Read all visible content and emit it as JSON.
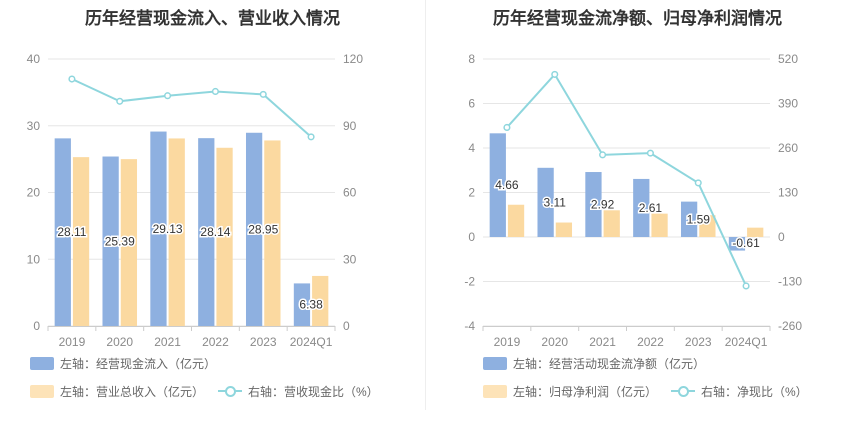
{
  "colors": {
    "bar_primary": "#8eb0e0",
    "bar_secondary": "#fbd9a0",
    "line": "#8ed6dd",
    "grid": "#e6e6e6",
    "axis_text": "#8a8a8a",
    "title": "#333333"
  },
  "chart_data": [
    {
      "type": "bar",
      "title": "历年经营现金流入、营业收入情况",
      "categories": [
        "2019",
        "2020",
        "2021",
        "2022",
        "2023",
        "2024Q1"
      ],
      "left_axis": {
        "ylim": [
          0,
          40
        ],
        "ticks": [
          "0",
          "10",
          "20",
          "30",
          "40"
        ]
      },
      "right_axis": {
        "ylim": [
          0,
          120
        ],
        "ticks": [
          "0",
          "30",
          "60",
          "90",
          "120"
        ]
      },
      "series": [
        {
          "name": "左轴：经营现金流入（亿元）",
          "kind": "bar",
          "axis": "left",
          "values": [
            28.11,
            25.39,
            29.13,
            28.14,
            28.95,
            6.38
          ],
          "labels": [
            "28.11",
            "25.39",
            "29.13",
            "28.14",
            "28.95",
            "6.38"
          ]
        },
        {
          "name": "左轴：营业总收入（亿元）",
          "kind": "bar",
          "axis": "left",
          "values": [
            25.3,
            25.0,
            28.1,
            26.7,
            27.8,
            7.5
          ]
        },
        {
          "name": "右轴：营收现金比（%）",
          "kind": "line",
          "axis": "right",
          "values": [
            111,
            101,
            103.5,
            105.4,
            104.1,
            85
          ]
        }
      ],
      "legend": "bottom"
    },
    {
      "type": "bar",
      "title": "历年经营现金流净额、归母净利润情况",
      "categories": [
        "2019",
        "2020",
        "2021",
        "2022",
        "2023",
        "2024Q1"
      ],
      "left_axis": {
        "ylim": [
          -4,
          8
        ],
        "ticks": [
          "-4",
          "-2",
          "0",
          "2",
          "4",
          "6",
          "8"
        ]
      },
      "right_axis": {
        "ylim": [
          -260,
          520
        ],
        "ticks": [
          "-260",
          "-130",
          "0",
          "130",
          "260",
          "390",
          "520"
        ]
      },
      "series": [
        {
          "name": "左轴：经营活动现金流净额（亿元）",
          "kind": "bar",
          "axis": "left",
          "values": [
            4.66,
            3.11,
            2.92,
            2.61,
            1.59,
            -0.61
          ],
          "labels": [
            "4.66",
            "3.11",
            "2.92",
            "2.61",
            "1.59",
            "-0.61"
          ]
        },
        {
          "name": "左轴：归母净利润（亿元）",
          "kind": "bar",
          "axis": "left",
          "values": [
            1.45,
            0.65,
            1.2,
            1.05,
            0.98,
            0.42
          ]
        },
        {
          "name": "右轴：净现比（%）",
          "kind": "line",
          "axis": "right",
          "values": [
            320,
            475,
            240,
            245,
            158,
            -143
          ]
        }
      ],
      "legend": "bottom"
    }
  ]
}
